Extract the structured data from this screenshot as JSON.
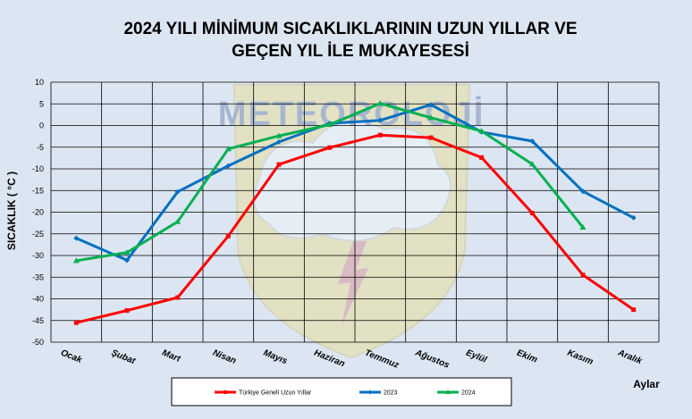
{
  "chart_data": {
    "type": "line",
    "title_lines": [
      "2024 YILI MİNİMUM SICAKLIKLARININ UZUN YILLAR VE",
      "GEÇEN YIL İLE MUKAYESESİ"
    ],
    "xlabel": "Aylar",
    "ylabel": "SICAKLIK ( °C )",
    "categories": [
      "Ocak",
      "Şubat",
      "Mart",
      "Nisan",
      "Mayıs",
      "Haziran",
      "Temmuz",
      "Ağustos",
      "Eylül",
      "Ekim",
      "Kasım",
      "Aralık"
    ],
    "ylim": [
      -50,
      10
    ],
    "yticks": [
      10,
      5,
      0,
      -5,
      -10,
      -15,
      -20,
      -25,
      -30,
      -35,
      -40,
      -45,
      -50
    ],
    "grid": true,
    "legend_position": "bottom",
    "watermark": "METEOROLOJİ",
    "series": [
      {
        "name": "Türkiye Geneli Uzun Yıllar",
        "color": "#ff0000",
        "values": [
          -45.5,
          -42.7,
          -39.7,
          -25.5,
          -9.0,
          -5.1,
          -2.2,
          -2.8,
          -7.4,
          -20.2,
          -34.5,
          -42.5
        ]
      },
      {
        "name": "2023",
        "color": "#0070c0",
        "values": [
          -26.0,
          -31.1,
          -15.3,
          -9.3,
          -3.8,
          0.5,
          1.2,
          4.8,
          -1.5,
          -3.6,
          -15.2,
          -21.3
        ]
      },
      {
        "name": "2024",
        "color": "#00b050",
        "values": [
          -31.2,
          -29.3,
          -22.2,
          -5.4,
          -2.4,
          0.2,
          5.1,
          1.8,
          -1.3,
          -8.9,
          -23.5,
          null
        ]
      }
    ]
  }
}
